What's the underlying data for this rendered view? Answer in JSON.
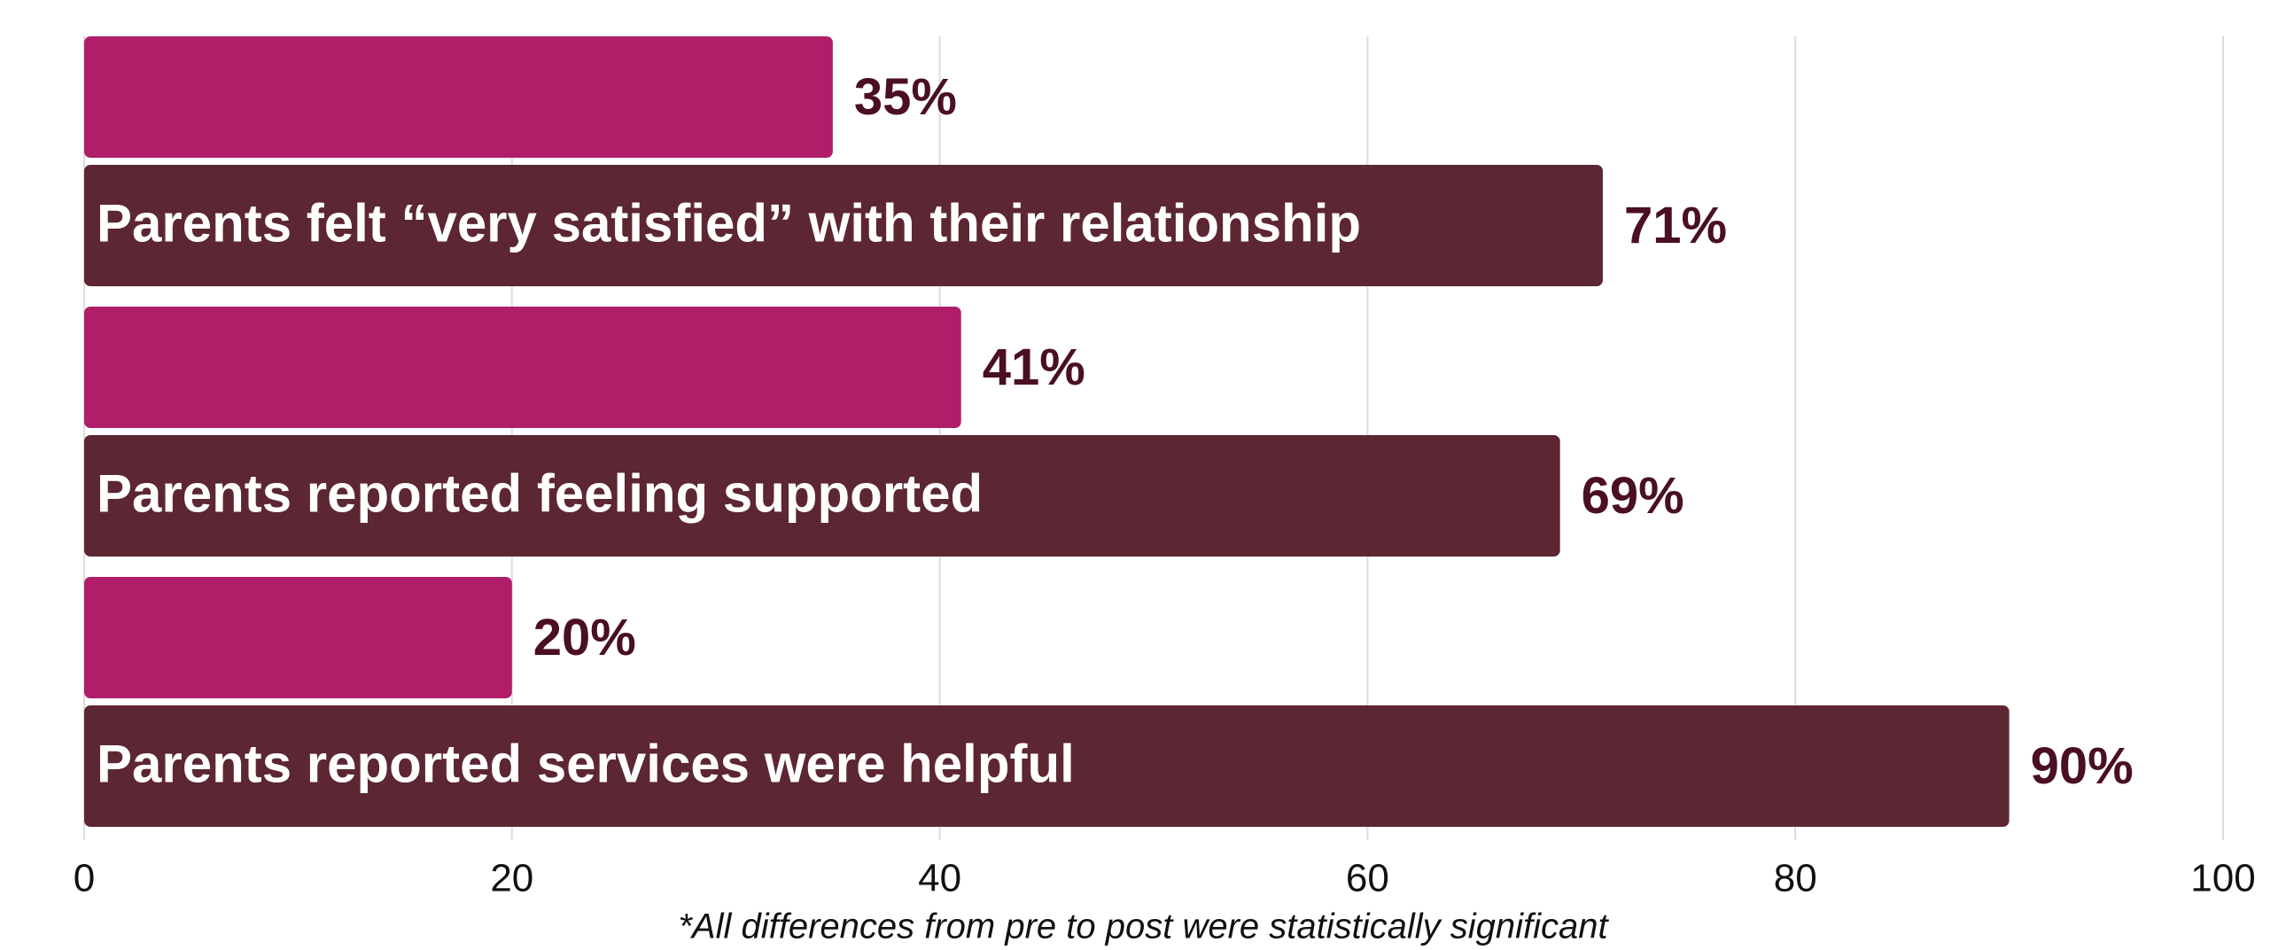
{
  "chart_data": {
    "type": "bar",
    "orientation": "horizontal",
    "categories": [
      "Parents felt “very satisfied” with their relationship",
      "Parents reported feeling supported",
      "Parents reported services were helpful"
    ],
    "series": [
      {
        "color": "#b01e6a",
        "values": [
          35,
          41,
          20
        ],
        "value_labels": [
          "35%",
          "41%",
          "20%"
        ]
      },
      {
        "color": "#5c2632",
        "values": [
          71,
          69,
          90
        ],
        "value_labels": [
          "71%",
          "69%",
          "90%"
        ]
      }
    ],
    "xlim": [
      0,
      100
    ],
    "xticks": [
      0,
      20,
      40,
      60,
      80,
      100
    ],
    "grid": true,
    "label_color": "#4a0f22",
    "footnote": "*All differences from pre to post were statistically significant"
  }
}
